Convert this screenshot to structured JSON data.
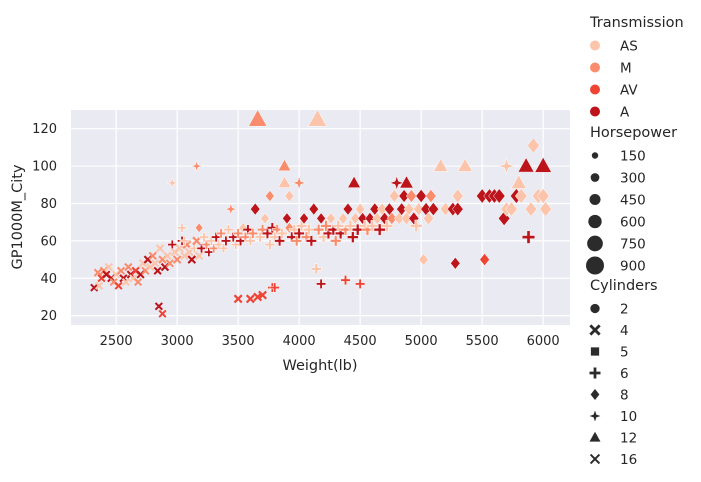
{
  "chart_data": {
    "type": "scatter",
    "title": "",
    "xlabel": "Weight(lb)",
    "ylabel": "GP1000M_City",
    "xlim": [
      2130,
      6220
    ],
    "ylim": [
      15,
      130
    ],
    "xticks": [
      2500,
      3000,
      3500,
      4000,
      4500,
      5000,
      5500,
      6000
    ],
    "yticks": [
      20,
      40,
      60,
      80,
      100,
      120
    ],
    "grid": true,
    "legend_placement": "outside-right",
    "hue_legend": {
      "title": "Transmission",
      "entries": [
        {
          "label": "AS",
          "color": "#fcc5ab"
        },
        {
          "label": "M",
          "color": "#f98c6c"
        },
        {
          "label": "AV",
          "color": "#ef4434"
        },
        {
          "label": "A",
          "color": "#bc141a"
        }
      ]
    },
    "size_legend": {
      "title": "Horsepower",
      "entries": [
        {
          "label": "150",
          "value": 150
        },
        {
          "label": "300",
          "value": 300
        },
        {
          "label": "450",
          "value": 450
        },
        {
          "label": "600",
          "value": 600
        },
        {
          "label": "750",
          "value": 750
        },
        {
          "label": "900",
          "value": 900
        }
      ]
    },
    "style_legend": {
      "title": "Cylinders",
      "entries": [
        {
          "label": "2",
          "marker": "circle"
        },
        {
          "label": "4",
          "marker": "x"
        },
        {
          "label": "5",
          "marker": "square"
        },
        {
          "label": "6",
          "marker": "plus"
        },
        {
          "label": "8",
          "marker": "diamond"
        },
        {
          "label": "10",
          "marker": "star"
        },
        {
          "label": "12",
          "marker": "triangle"
        },
        {
          "label": "16",
          "marker": "smallx"
        }
      ]
    },
    "points": [
      [
        2320,
        35,
        "A",
        4,
        150
      ],
      [
        2350,
        43,
        "M",
        4,
        160
      ],
      [
        2360,
        36,
        "AS",
        4,
        160
      ],
      [
        2380,
        40,
        "AV",
        4,
        150
      ],
      [
        2400,
        44,
        "M",
        4,
        170
      ],
      [
        2420,
        42,
        "A",
        4,
        150
      ],
      [
        2440,
        46,
        "AS",
        4,
        160
      ],
      [
        2460,
        40,
        "A",
        4,
        160
      ],
      [
        2480,
        38,
        "M",
        4,
        150
      ],
      [
        2500,
        42,
        "AS",
        4,
        170
      ],
      [
        2520,
        36,
        "AV",
        4,
        150
      ],
      [
        2540,
        44,
        "M",
        4,
        160
      ],
      [
        2560,
        40,
        "A",
        4,
        160
      ],
      [
        2580,
        38,
        "AS",
        4,
        160
      ],
      [
        2600,
        46,
        "M",
        4,
        170
      ],
      [
        2620,
        42,
        "A",
        4,
        160
      ],
      [
        2640,
        40,
        "AS",
        4,
        160
      ],
      [
        2660,
        44,
        "AV",
        4,
        160
      ],
      [
        2680,
        38,
        "M",
        4,
        150
      ],
      [
        2700,
        42,
        "A",
        4,
        160
      ],
      [
        2720,
        48,
        "AS",
        4,
        170
      ],
      [
        2740,
        44,
        "M",
        4,
        160
      ],
      [
        2760,
        50,
        "A",
        4,
        170
      ],
      [
        2780,
        46,
        "AS",
        4,
        160
      ],
      [
        2800,
        52,
        "M",
        4,
        170
      ],
      [
        2820,
        48,
        "AS",
        4,
        160
      ],
      [
        2840,
        44,
        "A",
        4,
        160
      ],
      [
        2860,
        56,
        "AS",
        4,
        180
      ],
      [
        2880,
        50,
        "M",
        4,
        170
      ],
      [
        2900,
        46,
        "A",
        4,
        170
      ],
      [
        2920,
        52,
        "AS",
        4,
        170
      ],
      [
        2940,
        48,
        "M",
        4,
        160
      ],
      [
        2960,
        58,
        "A",
        6,
        220
      ],
      [
        2980,
        54,
        "AS",
        4,
        180
      ],
      [
        3000,
        50,
        "M",
        4,
        180
      ],
      [
        3020,
        56,
        "AS",
        4,
        190
      ],
      [
        3040,
        60,
        "A",
        6,
        230
      ],
      [
        3060,
        52,
        "AS",
        4,
        180
      ],
      [
        3080,
        58,
        "M",
        4,
        200
      ],
      [
        3100,
        54,
        "AS",
        4,
        190
      ],
      [
        3120,
        50,
        "A",
        4,
        180
      ],
      [
        3140,
        56,
        "AS",
        6,
        220
      ],
      [
        3160,
        60,
        "M",
        4,
        200
      ],
      [
        3180,
        52,
        "AS",
        4,
        190
      ],
      [
        2850,
        25,
        "A",
        4,
        160
      ],
      [
        2880,
        21,
        "AV",
        4,
        150
      ],
      [
        2960,
        91,
        "AS",
        10,
        300
      ],
      [
        3040,
        67,
        "AS",
        6,
        220
      ],
      [
        3060,
        60,
        "AS",
        6,
        230
      ],
      [
        3160,
        100,
        "M",
        10,
        300
      ],
      [
        3180,
        67,
        "M",
        8,
        250
      ],
      [
        3200,
        56,
        "A",
        6,
        230
      ],
      [
        3220,
        62,
        "AS",
        6,
        240
      ],
      [
        3240,
        58,
        "M",
        6,
        230
      ],
      [
        3260,
        54,
        "A",
        6,
        220
      ],
      [
        3280,
        60,
        "AS",
        6,
        240
      ],
      [
        3300,
        56,
        "M",
        6,
        230
      ],
      [
        3320,
        62,
        "A",
        6,
        250
      ],
      [
        3340,
        58,
        "AS",
        6,
        240
      ],
      [
        3360,
        64,
        "M",
        6,
        250
      ],
      [
        3380,
        56,
        "AS",
        6,
        230
      ],
      [
        3400,
        60,
        "A",
        6,
        250
      ],
      [
        3420,
        66,
        "AS",
        6,
        260
      ],
      [
        3440,
        77,
        "M",
        10,
        350
      ],
      [
        3460,
        62,
        "A",
        6,
        250
      ],
      [
        3480,
        58,
        "AS",
        6,
        240
      ],
      [
        3500,
        64,
        "M",
        6,
        260
      ],
      [
        3500,
        29,
        "AV",
        4,
        200
      ],
      [
        3520,
        60,
        "A",
        6,
        260
      ],
      [
        3540,
        67,
        "AS",
        8,
        300
      ],
      [
        3560,
        62,
        "M",
        6,
        260
      ],
      [
        3580,
        66,
        "A",
        6,
        280
      ],
      [
        3600,
        60,
        "AS",
        6,
        270
      ],
      [
        3600,
        29,
        "AV",
        4,
        200
      ],
      [
        3620,
        64,
        "M",
        6,
        280
      ],
      [
        3640,
        77,
        "A",
        8,
        400
      ],
      [
        3660,
        30,
        "AV",
        4,
        200
      ],
      [
        3660,
        125,
        "M",
        12,
        800
      ],
      [
        3680,
        62,
        "AS",
        6,
        280
      ],
      [
        3700,
        66,
        "M",
        6,
        300
      ],
      [
        3700,
        31,
        "AV",
        4,
        200
      ],
      [
        3720,
        72,
        "AS",
        8,
        330
      ],
      [
        3740,
        64,
        "A",
        6,
        300
      ],
      [
        3760,
        58,
        "AS",
        6,
        280
      ],
      [
        3780,
        35,
        "AV",
        6,
        250
      ],
      [
        3800,
        35,
        "AV",
        6,
        250
      ],
      [
        3760,
        84,
        "M",
        8,
        350
      ],
      [
        3780,
        67,
        "A",
        6,
        300
      ],
      [
        3800,
        62,
        "AS",
        6,
        290
      ],
      [
        3820,
        66,
        "M",
        6,
        300
      ],
      [
        3840,
        60,
        "A",
        6,
        290
      ],
      [
        3860,
        64,
        "AS",
        6,
        300
      ],
      [
        3880,
        91,
        "AS",
        12,
        450
      ],
      [
        3880,
        100,
        "M",
        12,
        450
      ],
      [
        3900,
        72,
        "A",
        8,
        350
      ],
      [
        3920,
        84,
        "AS",
        8,
        380
      ],
      [
        3920,
        67,
        "M",
        8,
        330
      ],
      [
        3940,
        62,
        "A",
        6,
        300
      ],
      [
        3960,
        66,
        "AS",
        6,
        310
      ],
      [
        3980,
        60,
        "M",
        6,
        300
      ],
      [
        4000,
        91,
        "M",
        10,
        450
      ],
      [
        4000,
        64,
        "A",
        6,
        310
      ],
      [
        4020,
        68,
        "AS",
        6,
        320
      ],
      [
        4040,
        72,
        "A",
        8,
        350
      ],
      [
        4060,
        62,
        "M",
        6,
        310
      ],
      [
        4080,
        66,
        "AS",
        6,
        320
      ],
      [
        4100,
        60,
        "A",
        6,
        310
      ],
      [
        4120,
        77,
        "A",
        8,
        400
      ],
      [
        4140,
        45,
        "AS",
        6,
        300
      ],
      [
        4150,
        125,
        "AS",
        12,
        800
      ],
      [
        4160,
        66,
        "M",
        6,
        320
      ],
      [
        4180,
        72,
        "A",
        8,
        350
      ],
      [
        4180,
        37,
        "A",
        6,
        250
      ],
      [
        4200,
        62,
        "AS",
        6,
        320
      ],
      [
        4220,
        68,
        "M",
        6,
        330
      ],
      [
        4240,
        64,
        "A",
        6,
        320
      ],
      [
        4260,
        72,
        "AS",
        8,
        360
      ],
      [
        4280,
        66,
        "A",
        6,
        330
      ],
      [
        4300,
        60,
        "M",
        6,
        320
      ],
      [
        4320,
        68,
        "AS",
        6,
        340
      ],
      [
        4340,
        64,
        "A",
        6,
        330
      ],
      [
        4360,
        72,
        "AS",
        8,
        370
      ],
      [
        4380,
        39,
        "AV",
        6,
        260
      ],
      [
        4380,
        66,
        "M",
        6,
        340
      ],
      [
        4400,
        77,
        "A",
        8,
        400
      ],
      [
        4420,
        68,
        "AS",
        6,
        350
      ],
      [
        4440,
        62,
        "A",
        6,
        340
      ],
      [
        4450,
        91,
        "A",
        12,
        450
      ],
      [
        4460,
        72,
        "AS",
        8,
        380
      ],
      [
        4480,
        66,
        "A",
        6,
        350
      ],
      [
        4500,
        37,
        "AV",
        6,
        260
      ],
      [
        4500,
        77,
        "AS",
        8,
        400
      ],
      [
        4520,
        72,
        "A",
        8,
        390
      ],
      [
        4540,
        68,
        "AS",
        6,
        360
      ],
      [
        4560,
        66,
        "M",
        6,
        360
      ],
      [
        4580,
        72,
        "A",
        8,
        400
      ],
      [
        4600,
        68,
        "AS",
        6,
        370
      ],
      [
        4620,
        77,
        "A",
        8,
        420
      ],
      [
        4640,
        72,
        "AS",
        8,
        400
      ],
      [
        4660,
        66,
        "A",
        6,
        370
      ],
      [
        4680,
        77,
        "AS",
        8,
        420
      ],
      [
        4700,
        72,
        "A",
        8,
        410
      ],
      [
        4720,
        68,
        "AS",
        6,
        380
      ],
      [
        4740,
        77,
        "A",
        8,
        430
      ],
      [
        4760,
        72,
        "M",
        8,
        420
      ],
      [
        4780,
        84,
        "AS",
        8,
        450
      ],
      [
        4800,
        91,
        "A",
        10,
        500
      ],
      [
        4820,
        72,
        "AS",
        8,
        430
      ],
      [
        4840,
        77,
        "A",
        8,
        440
      ],
      [
        4860,
        84,
        "A",
        8,
        460
      ],
      [
        4880,
        91,
        "A",
        12,
        500
      ],
      [
        4880,
        72,
        "AS",
        8,
        440
      ],
      [
        4900,
        77,
        "AS",
        8,
        450
      ],
      [
        4920,
        84,
        "M",
        8,
        460
      ],
      [
        4940,
        72,
        "A",
        8,
        450
      ],
      [
        4960,
        68,
        "AS",
        6,
        400
      ],
      [
        4980,
        77,
        "AS",
        8,
        460
      ],
      [
        5000,
        84,
        "A",
        8,
        480
      ],
      [
        5020,
        50,
        "AS",
        8,
        400
      ],
      [
        5040,
        77,
        "A",
        8,
        470
      ],
      [
        5060,
        72,
        "AS",
        8,
        460
      ],
      [
        5080,
        84,
        "M",
        8,
        480
      ],
      [
        5100,
        77,
        "A",
        8,
        480
      ],
      [
        5160,
        100,
        "AS",
        12,
        550
      ],
      [
        5200,
        77,
        "AS",
        8,
        490
      ],
      [
        5260,
        77,
        "A",
        8,
        500
      ],
      [
        5280,
        48,
        "A",
        8,
        400
      ],
      [
        5300,
        84,
        "AS",
        8,
        520
      ],
      [
        5300,
        77,
        "A",
        8,
        500
      ],
      [
        5360,
        100,
        "AS",
        12,
        560
      ],
      [
        5500,
        84,
        "A",
        8,
        550
      ],
      [
        5520,
        50,
        "AV",
        8,
        420
      ],
      [
        5560,
        84,
        "A",
        8,
        560
      ],
      [
        5600,
        84,
        "A",
        8,
        560
      ],
      [
        5640,
        84,
        "A",
        8,
        560
      ],
      [
        5680,
        72,
        "A",
        8,
        550
      ],
      [
        5700,
        100,
        "AS",
        10,
        600
      ],
      [
        5700,
        77,
        "AS",
        8,
        560
      ],
      [
        5740,
        77,
        "AS",
        8,
        560
      ],
      [
        5780,
        84,
        "A",
        8,
        580
      ],
      [
        5800,
        91,
        "AS",
        12,
        600
      ],
      [
        5820,
        84,
        "AS",
        8,
        580
      ],
      [
        5860,
        100,
        "A",
        12,
        650
      ],
      [
        5880,
        62,
        "A",
        6,
        450
      ],
      [
        5900,
        77,
        "AS",
        8,
        560
      ],
      [
        5920,
        111,
        "AS",
        8,
        600
      ],
      [
        5960,
        84,
        "AS",
        8,
        600
      ],
      [
        6000,
        100,
        "A",
        12,
        700
      ],
      [
        6000,
        84,
        "AS",
        8,
        600
      ],
      [
        6020,
        77,
        "AS",
        8,
        580
      ]
    ]
  }
}
